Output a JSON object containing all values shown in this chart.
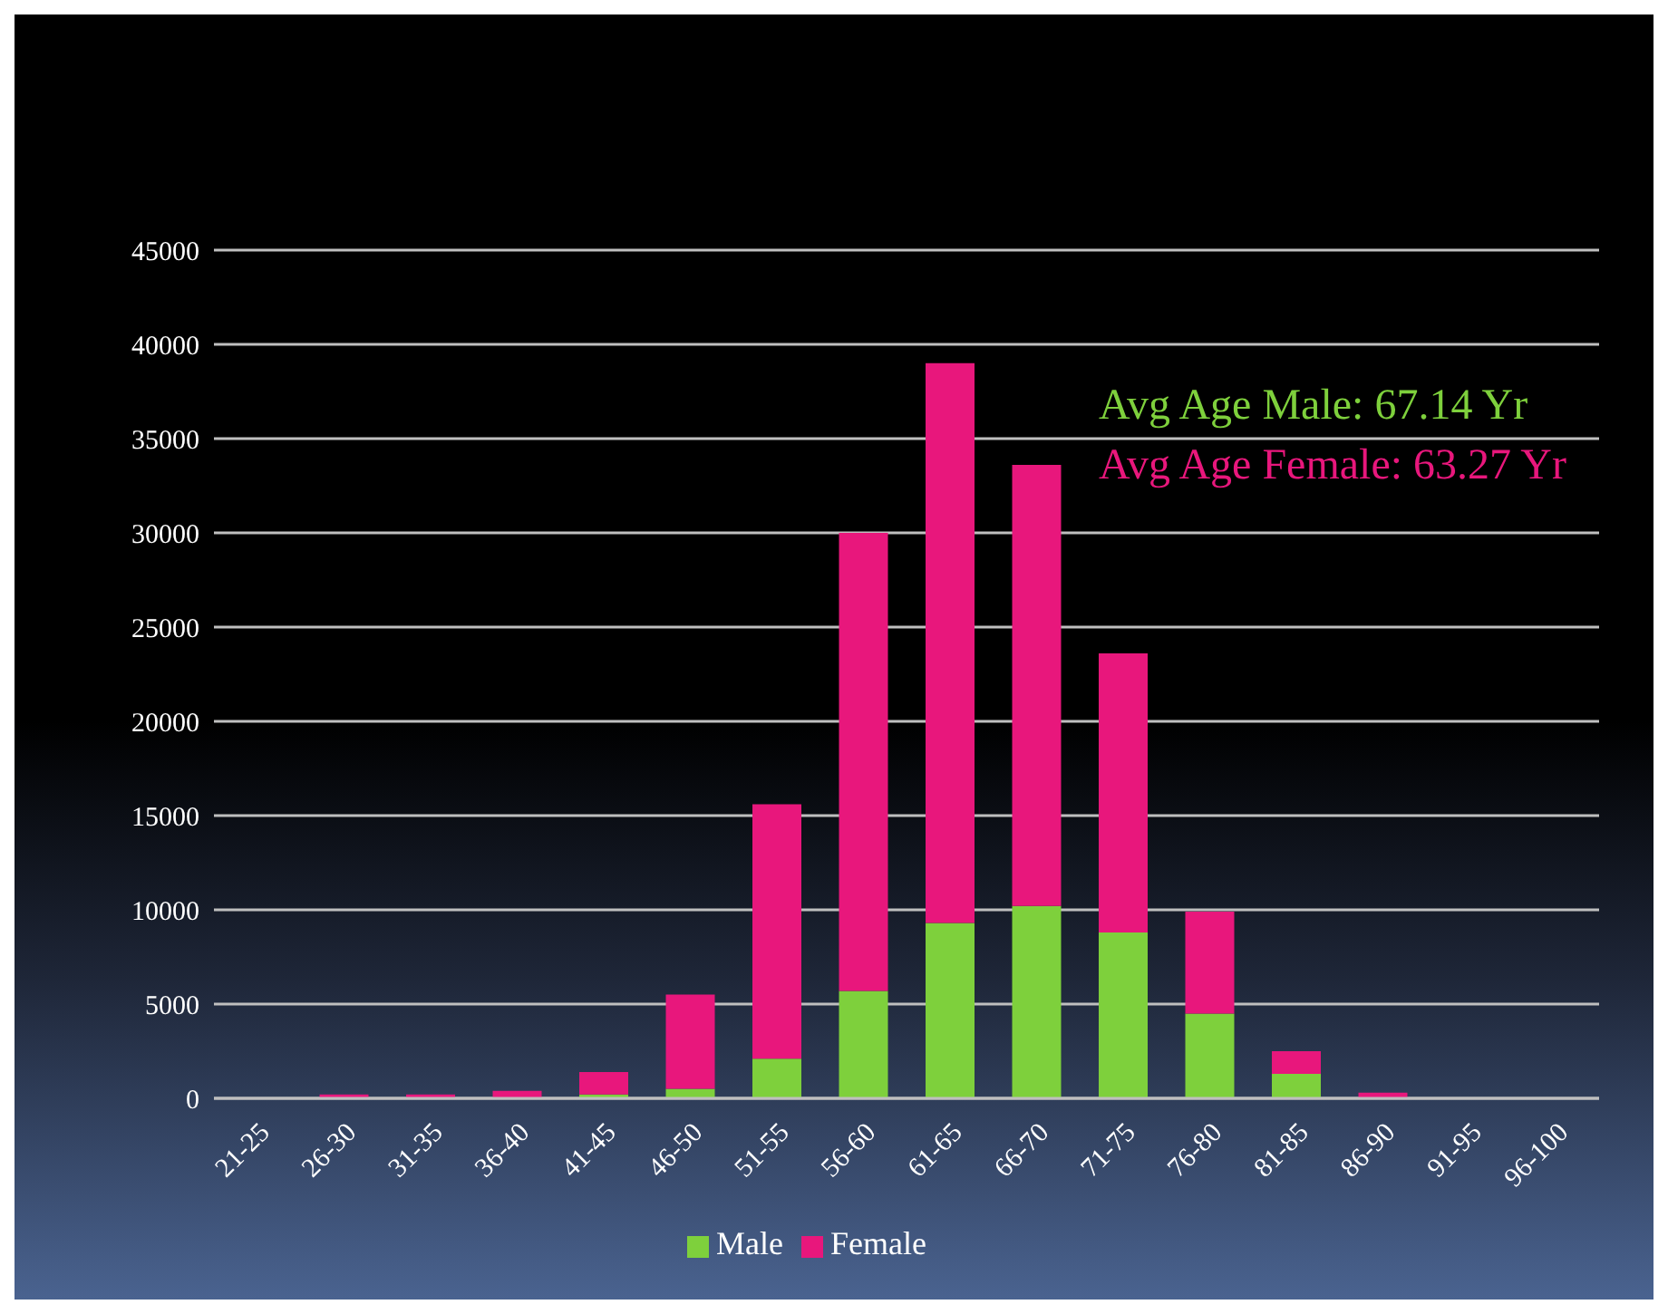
{
  "chart_data": {
    "type": "bar",
    "stacked": true,
    "categories": [
      "21-25",
      "26-30",
      "31-35",
      "36-40",
      "41-45",
      "46-50",
      "51-55",
      "56-60",
      "61-65",
      "66-70",
      "71-75",
      "76-80",
      "81-85",
      "86-90",
      "91-95",
      "96-100"
    ],
    "series": [
      {
        "name": "Male",
        "color": "#7ed03c",
        "values": [
          0,
          0,
          0,
          0,
          200,
          500,
          2100,
          5700,
          9300,
          10200,
          8800,
          4500,
          1300,
          null,
          0,
          0
        ]
      },
      {
        "name": "Female",
        "color": "#e8177c",
        "values": [
          0,
          200,
          200,
          400,
          1200,
          5000,
          13500,
          24300,
          29700,
          23400,
          14800,
          5400,
          1200,
          300,
          0,
          0
        ]
      }
    ],
    "ylim": [
      0,
      45000
    ],
    "yticks": [
      0,
      5000,
      10000,
      15000,
      20000,
      25000,
      30000,
      35000,
      40000,
      45000
    ],
    "grid": "y",
    "legend": "bottom",
    "annotations": [
      "Avg Age Male: 67.14 Yr",
      "Avg Age Female: 63.27 Yr"
    ]
  }
}
